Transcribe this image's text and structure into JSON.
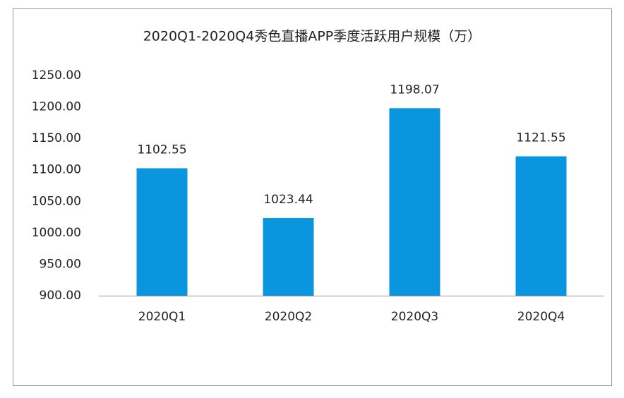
{
  "chart_data": {
    "type": "bar",
    "title": "2020Q1-2020Q4秀色直播APP季度活跃用户规模（万）",
    "categories": [
      "2020Q1",
      "2020Q2",
      "2020Q3",
      "2020Q4"
    ],
    "values": [
      1102.55,
      1023.44,
      1198.07,
      1121.55
    ],
    "color": "#0996df",
    "ylim": [
      900,
      1250
    ],
    "yticks": [
      {
        "value": 900,
        "label": "900.00"
      },
      {
        "value": 950,
        "label": "950.00"
      },
      {
        "value": 1000,
        "label": "1000.00"
      },
      {
        "value": 1050,
        "label": "1050.00"
      },
      {
        "value": 1100,
        "label": "1100.00"
      },
      {
        "value": 1150,
        "label": "1150.00"
      },
      {
        "value": 1200,
        "label": "1200.00"
      },
      {
        "value": 1250,
        "label": "1250.00"
      }
    ],
    "grid": false
  }
}
